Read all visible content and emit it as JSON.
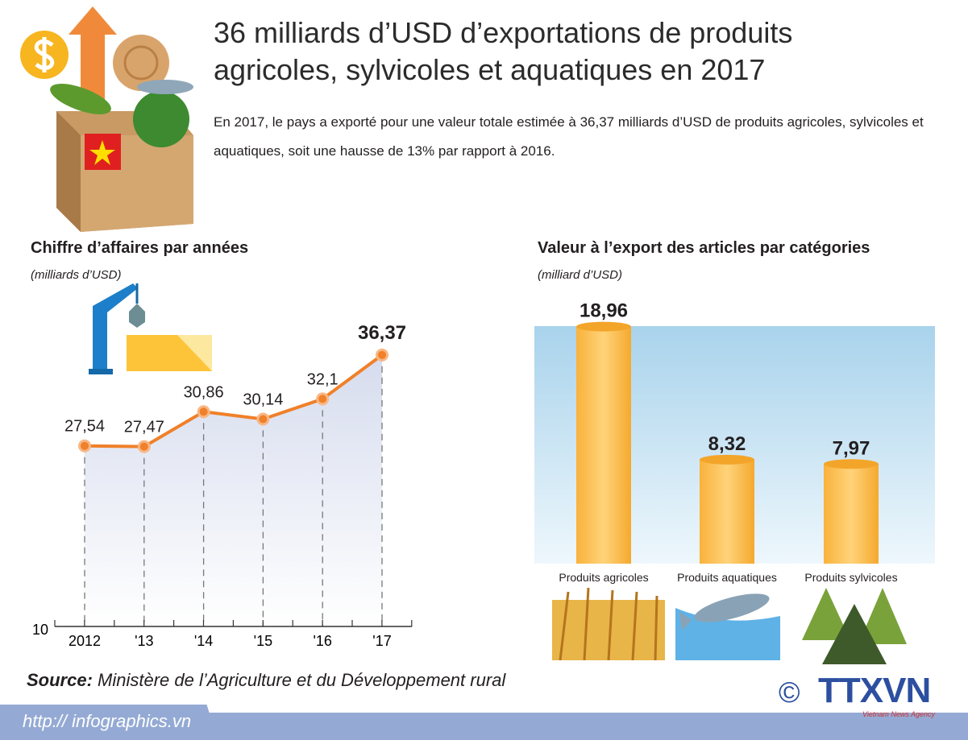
{
  "header": {
    "title_line1": "36 milliards d’USD d’exportations de produits",
    "title_line2": "agricoles, sylvicoles et aquatiques en 2017",
    "intro": "En 2017, le pays a exporté pour une valeur totale estimée à 36,37 milliards d’USD de produits agricoles, sylvicoles et aquatiques, soit une hausse de 13% par rapport à 2016."
  },
  "chart_data": [
    {
      "type": "line",
      "title": "Chiffre d’affaires par années",
      "ylabel": "(milliards d’USD)",
      "categories": [
        "2012",
        "'13",
        "'14",
        "'15",
        "'16",
        "'17"
      ],
      "values": [
        27.54,
        27.47,
        30.86,
        30.14,
        32.1,
        36.37
      ],
      "data_labels": [
        "27,54",
        "27,47",
        "30,86",
        "30,14",
        "32,1",
        "36,37"
      ],
      "y_tick_labels": [
        "10"
      ],
      "ylim": [
        10,
        38
      ],
      "grid": false,
      "area_fill": true,
      "colors": {
        "line": "#f0802a",
        "area": "#d6dcee"
      }
    },
    {
      "type": "bar",
      "title": "Valeur à l’export des articles par catégories",
      "ylabel": "(milliard d’USD)",
      "categories": [
        "Produits agricoles",
        "Produits aquatiques",
        "Produits sylvicoles"
      ],
      "values": [
        18.96,
        8.32,
        7.97
      ],
      "data_labels": [
        "18,96",
        "8,32",
        "7,97"
      ],
      "ylim": [
        0,
        19
      ],
      "colors": {
        "bar": "#fbc04e",
        "background": "#b9dbef"
      }
    }
  ],
  "footer": {
    "source_label": "Source:",
    "source_text": " Ministère de l’Agriculture et du Développement rural",
    "url": "http:// infographics.vn",
    "copyright": "©",
    "logo": "TTXVN",
    "logo_sub": "Vietnam News Agency"
  },
  "icons": [
    "box-of-produce-icon",
    "crane-container-icon",
    "wheat-icon",
    "fish-icon",
    "pine-trees-icon"
  ]
}
